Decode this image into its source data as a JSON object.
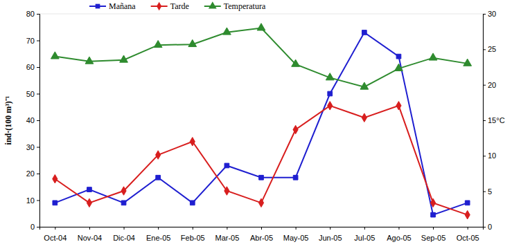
{
  "chart_data": {
    "type": "line",
    "y_label": "ind·(100 m³)⁻¹",
    "categories": [
      "Oct-04",
      "Nov-04",
      "Dic-04",
      "Ene-05",
      "Feb-05",
      "Mar-05",
      "Abr-05",
      "May-05",
      "Jun-05",
      "Jul-05",
      "Ago-05",
      "Sep-05",
      "Oct-05"
    ],
    "series": [
      {
        "name": "Mañana",
        "color": "#1f1fd0",
        "marker": "square",
        "values": [
          9,
          14,
          9,
          18.5,
          9,
          23,
          18.5,
          18.5,
          50,
          73,
          64,
          4.5,
          9
        ]
      },
      {
        "name": "Tarde",
        "color": "#d81e1e",
        "marker": "diamond",
        "values": [
          18,
          9,
          13.5,
          27,
          32,
          13.5,
          9,
          36.5,
          45.5,
          41,
          45.5,
          9,
          4.5
        ]
      },
      {
        "name": "Temperatura",
        "color": "#2e8b2e",
        "marker": "triangle",
        "axis": "y2",
        "values": [
          24,
          23.3,
          23.5,
          25.6,
          25.7,
          27.4,
          28,
          22.9,
          21,
          19.7,
          22.3,
          23.8,
          23
        ]
      }
    ],
    "ylim": [
      0,
      80
    ],
    "yticks": [
      0,
      10,
      20,
      30,
      40,
      50,
      60,
      70,
      80
    ],
    "y2lim": [
      0,
      30
    ],
    "y2ticks": [
      0,
      5,
      10,
      {
        "value": 15,
        "label": "15°C"
      },
      20,
      25,
      30
    ],
    "grid": false,
    "legend": "top"
  }
}
